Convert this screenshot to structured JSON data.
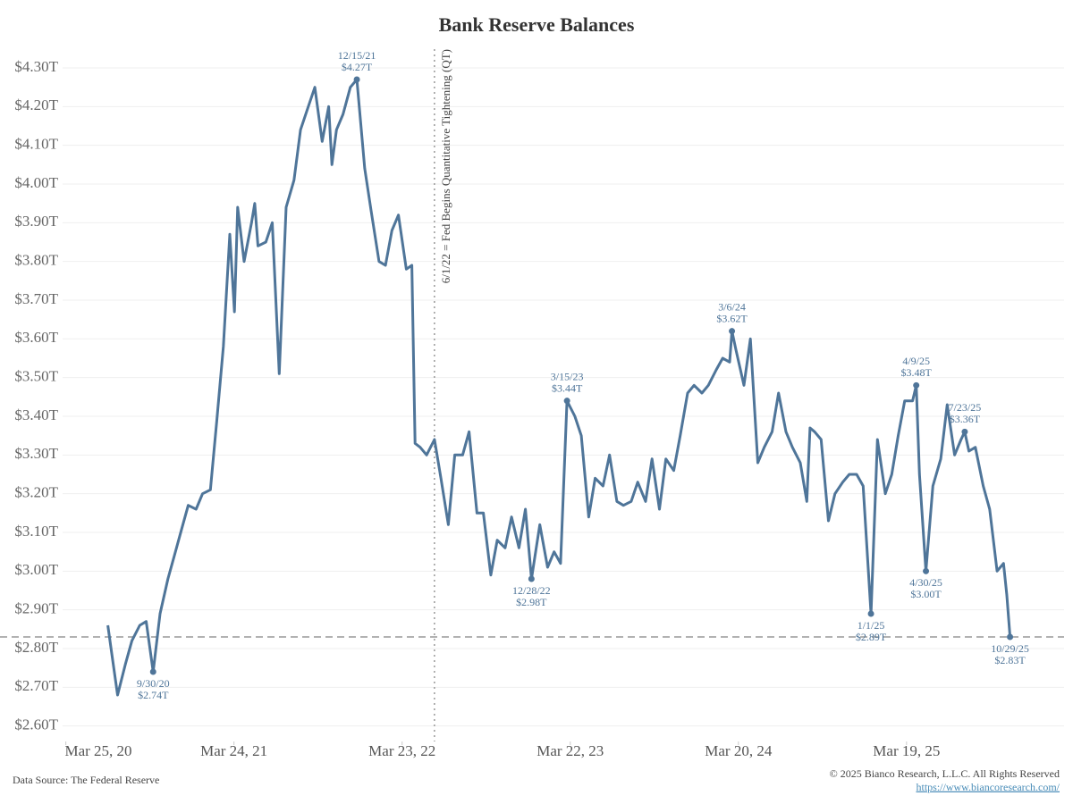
{
  "chart_data": {
    "type": "line",
    "title": "Bank Reserve Balances",
    "color": "#4f7599",
    "x": [
      "2020-06-24",
      "2020-07-01",
      "2020-07-15",
      "2020-08-01",
      "2020-08-15",
      "2020-09-01",
      "2020-09-15",
      "2020-09-30",
      "2020-10-15",
      "2020-11-01",
      "2020-11-15",
      "2020-12-01",
      "2020-12-15",
      "2021-01-01",
      "2021-01-15",
      "2021-02-01",
      "2021-02-15",
      "2021-03-01",
      "2021-03-15",
      "2021-03-25",
      "2021-04-01",
      "2021-04-15",
      "2021-05-01",
      "2021-05-08",
      "2021-05-15",
      "2021-06-01",
      "2021-06-15",
      "2021-06-30",
      "2021-07-15",
      "2021-08-01",
      "2021-08-15",
      "2021-09-01",
      "2021-09-15",
      "2021-10-01",
      "2021-10-15",
      "2021-10-22",
      "2021-11-01",
      "2021-11-15",
      "2021-12-01",
      "2021-12-15",
      "2022-01-01",
      "2022-01-15",
      "2022-02-01",
      "2022-02-15",
      "2022-03-01",
      "2022-03-15",
      "2022-04-01",
      "2022-04-13",
      "2022-04-20",
      "2022-05-01",
      "2022-05-15",
      "2022-06-01",
      "2022-06-15",
      "2022-07-01",
      "2022-07-15",
      "2022-08-01",
      "2022-08-15",
      "2022-09-01",
      "2022-09-15",
      "2022-10-01",
      "2022-10-15",
      "2022-11-01",
      "2022-11-15",
      "2022-12-01",
      "2022-12-15",
      "2022-12-28",
      "2023-01-15",
      "2023-02-01",
      "2023-02-15",
      "2023-03-01",
      "2023-03-15",
      "2023-04-01",
      "2023-04-15",
      "2023-05-01",
      "2023-05-15",
      "2023-06-01",
      "2023-06-15",
      "2023-07-01",
      "2023-07-15",
      "2023-08-01",
      "2023-08-15",
      "2023-09-01",
      "2023-09-15",
      "2023-10-01",
      "2023-10-15",
      "2023-11-01",
      "2023-11-15",
      "2023-12-01",
      "2023-12-15",
      "2024-01-01",
      "2024-01-15",
      "2024-02-01",
      "2024-02-15",
      "2024-03-01",
      "2024-03-06",
      "2024-03-15",
      "2024-04-01",
      "2024-04-15",
      "2024-05-01",
      "2024-05-15",
      "2024-06-01",
      "2024-06-15",
      "2024-07-01",
      "2024-07-15",
      "2024-08-01",
      "2024-08-15",
      "2024-08-22",
      "2024-09-01",
      "2024-09-15",
      "2024-10-01",
      "2024-10-15",
      "2024-11-01",
      "2024-11-15",
      "2024-12-01",
      "2024-12-15",
      "2025-01-01",
      "2025-01-15",
      "2025-02-01",
      "2025-02-15",
      "2025-03-01",
      "2025-03-15",
      "2025-04-01",
      "2025-04-09",
      "2025-04-16",
      "2025-04-30",
      "2025-05-15",
      "2025-06-01",
      "2025-06-15",
      "2025-07-01",
      "2025-07-15",
      "2025-07-23",
      "2025-08-01",
      "2025-08-15",
      "2025-09-01",
      "2025-09-15",
      "2025-10-01",
      "2025-10-15",
      "2025-10-22",
      "2025-10-29"
    ],
    "values": [
      2.86,
      2.8,
      2.68,
      2.76,
      2.82,
      2.86,
      2.87,
      2.74,
      2.89,
      2.98,
      3.04,
      3.11,
      3.17,
      3.16,
      3.2,
      3.21,
      3.39,
      3.58,
      3.87,
      3.67,
      3.94,
      3.8,
      3.9,
      3.95,
      3.84,
      3.85,
      3.9,
      3.51,
      3.94,
      4.01,
      4.14,
      4.2,
      4.25,
      4.11,
      4.2,
      4.05,
      4.14,
      4.18,
      4.25,
      4.27,
      4.04,
      3.93,
      3.8,
      3.79,
      3.88,
      3.92,
      3.78,
      3.79,
      3.33,
      3.32,
      3.3,
      3.34,
      3.24,
      3.12,
      3.3,
      3.3,
      3.36,
      3.15,
      3.15,
      2.99,
      3.08,
      3.06,
      3.14,
      3.06,
      3.16,
      2.98,
      3.12,
      3.01,
      3.05,
      3.02,
      3.44,
      3.4,
      3.35,
      3.14,
      3.24,
      3.22,
      3.3,
      3.18,
      3.17,
      3.18,
      3.23,
      3.18,
      3.29,
      3.16,
      3.29,
      3.26,
      3.35,
      3.46,
      3.48,
      3.46,
      3.48,
      3.52,
      3.55,
      3.54,
      3.62,
      3.57,
      3.48,
      3.6,
      3.28,
      3.32,
      3.36,
      3.46,
      3.36,
      3.32,
      3.28,
      3.18,
      3.37,
      3.36,
      3.34,
      3.13,
      3.2,
      3.23,
      3.25,
      3.25,
      3.22,
      2.89,
      3.34,
      3.2,
      3.25,
      3.35,
      3.44,
      3.44,
      3.48,
      3.25,
      3.0,
      3.22,
      3.29,
      3.43,
      3.3,
      3.34,
      3.36,
      3.31,
      3.32,
      3.22,
      3.16,
      3.0,
      3.02,
      2.94,
      2.83
    ],
    "annotations": [
      {
        "x": "2020-09-30",
        "label": "9/30/20",
        "value_label": "$2.74T"
      },
      {
        "x": "2021-12-15",
        "label": "12/15/21",
        "value_label": "$4.27T"
      },
      {
        "x": "2022-12-28",
        "label": "12/28/22",
        "value_label": "$2.98T"
      },
      {
        "x": "2023-03-15",
        "label": "3/15/23",
        "value_label": "$3.44T"
      },
      {
        "x": "2024-03-06",
        "label": "3/6/24",
        "value_label": "$3.62T"
      },
      {
        "x": "2025-01-01",
        "label": "1/1/25",
        "value_label": "$2.89T"
      },
      {
        "x": "2025-04-09",
        "label": "4/9/25",
        "value_label": "$3.48T"
      },
      {
        "x": "2025-04-30",
        "label": "4/30/25",
        "value_label": "$3.00T"
      },
      {
        "x": "2025-07-23",
        "label": "7/23/25",
        "value_label": "$3.36T"
      },
      {
        "x": "2025-10-29",
        "label": "10/29/25",
        "value_label": "$2.83T"
      }
    ],
    "hline": 2.83,
    "vline": {
      "x": "2022-06-01",
      "label": "6/1/22 = Fed Begins Quantitative Tightening (QT)"
    },
    "xlim": [
      "2020-03-18",
      "2026-02-23"
    ],
    "xticks": [
      {
        "value": "2020-03-25",
        "label": "Mar 25, 20"
      },
      {
        "value": "2021-03-24",
        "label": "Mar 24, 21"
      },
      {
        "value": "2022-03-23",
        "label": "Mar 23, 22"
      },
      {
        "value": "2023-03-22",
        "label": "Mar 22, 23"
      },
      {
        "value": "2024-03-20",
        "label": "Mar 20, 24"
      },
      {
        "value": "2025-03-19",
        "label": "Mar 19, 25"
      }
    ],
    "ylim": [
      2.56,
      4.36
    ],
    "yticks": [
      {
        "value": 2.6,
        "label": "$2.60T"
      },
      {
        "value": 2.7,
        "label": "$2.70T"
      },
      {
        "value": 2.8,
        "label": "$2.80T"
      },
      {
        "value": 2.9,
        "label": "$2.90T"
      },
      {
        "value": 3.0,
        "label": "$3.00T"
      },
      {
        "value": 3.1,
        "label": "$3.10T"
      },
      {
        "value": 3.2,
        "label": "$3.20T"
      },
      {
        "value": 3.3,
        "label": "$3.30T"
      },
      {
        "value": 3.4,
        "label": "$3.40T"
      },
      {
        "value": 3.5,
        "label": "$3.50T"
      },
      {
        "value": 3.6,
        "label": "$3.60T"
      },
      {
        "value": 3.7,
        "label": "$3.70T"
      },
      {
        "value": 3.8,
        "label": "$3.80T"
      },
      {
        "value": 3.9,
        "label": "$3.90T"
      },
      {
        "value": 4.0,
        "label": "$4.00T"
      },
      {
        "value": 4.1,
        "label": "$4.10T"
      },
      {
        "value": 4.2,
        "label": "$4.20T"
      },
      {
        "value": 4.3,
        "label": "$4.30T"
      }
    ],
    "grid": true,
    "source": "Data Source: The Federal Reserve",
    "copyright": "© 2025 Bianco Research, L.L.C. All Rights Reserved",
    "url": "https://www.biancoresearch.com/"
  }
}
